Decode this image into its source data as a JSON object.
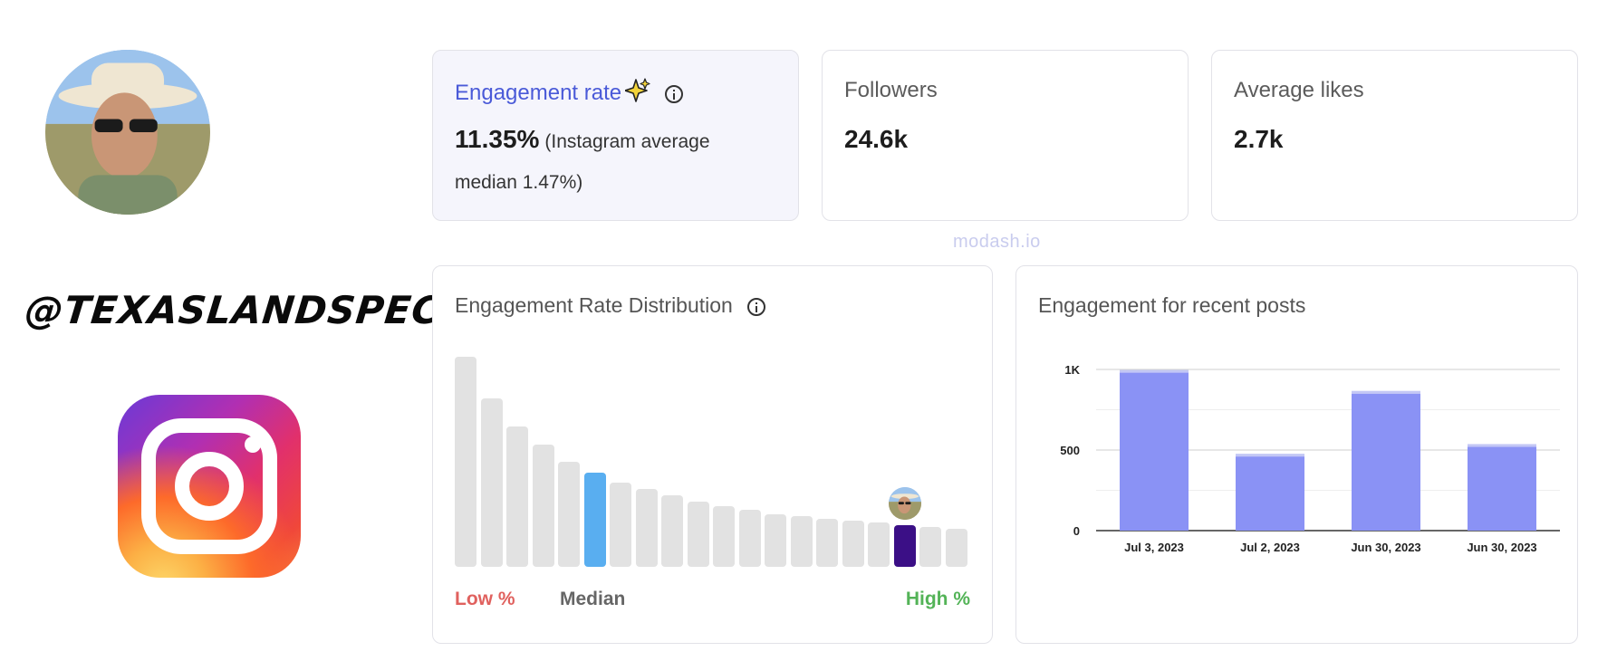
{
  "profile": {
    "handle": "@TEXASLANDSPECIALIST",
    "platform": "Instagram"
  },
  "watermark": "modash.io",
  "stats": {
    "engagement": {
      "label": "Engagement rate",
      "value": "11.35%",
      "note_part1": "(Instagram average",
      "note_part2": "median 1.47%)",
      "icons": [
        "sparkle-icon",
        "info-icon"
      ]
    },
    "followers": {
      "label": "Followers",
      "value": "24.6k"
    },
    "average_likes": {
      "label": "Average likes",
      "value": "2.7k"
    }
  },
  "distribution": {
    "title": "Engagement Rate Distribution",
    "legend": {
      "low": "Low %",
      "median": "Median",
      "high": "High %"
    },
    "colors": {
      "bar": "#e2e2e2",
      "median": "#59aef0",
      "profile": "#3b0f86",
      "low": "#e0615e",
      "high": "#53b357"
    },
    "bars": [
      1.0,
      0.8,
      0.67,
      0.58,
      0.5,
      0.45,
      0.4,
      0.37,
      0.34,
      0.31,
      0.29,
      0.27,
      0.25,
      0.24,
      0.23,
      0.22,
      0.21,
      0.2,
      0.19,
      0.18
    ],
    "median_index": 5,
    "profile_index": 17
  },
  "chart_data": {
    "type": "bar",
    "title": "Engagement for recent posts",
    "categories": [
      "Jul 3, 2023",
      "Jul 2, 2023",
      "Jun 30, 2023",
      "Jun 30, 2023"
    ],
    "values": [
      980,
      460,
      850,
      520
    ],
    "ylim": [
      0,
      1000
    ],
    "yticks": [
      0,
      500,
      1000
    ],
    "ytick_labels": [
      "0",
      "500",
      "1K"
    ],
    "grid": true,
    "color": "#8a92f5"
  }
}
